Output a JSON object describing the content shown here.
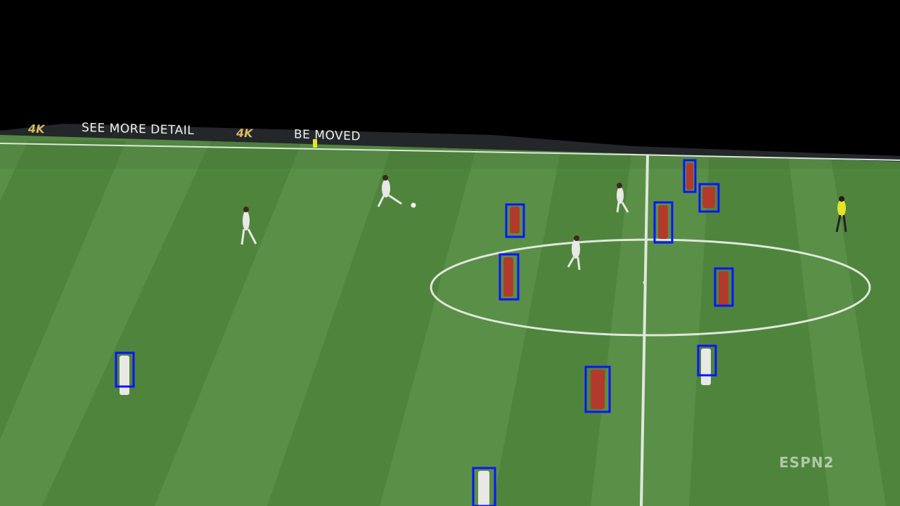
{
  "banner": {
    "logo_4k": "4K",
    "text_left": "SEE MORE DETAIL",
    "text_right": "BE MOVED"
  },
  "watermark": "ESPN2",
  "colors": {
    "pitch_light": "#5f944b",
    "pitch_dark": "#4f833d",
    "line": "#eef2ec",
    "bbox": "#0a14ff",
    "red_team": "#b23a2a",
    "white_team": "#e8e8e4",
    "referee": "#e4e42a"
  },
  "detections": [
    {
      "label": "player-red"
    },
    {
      "label": "player-red"
    },
    {
      "label": "player-red"
    },
    {
      "label": "player-red"
    },
    {
      "label": "player-red"
    },
    {
      "label": "player-red"
    },
    {
      "label": "player-red"
    },
    {
      "label": "player-white"
    },
    {
      "label": "player-white"
    },
    {
      "label": "player-white"
    }
  ]
}
